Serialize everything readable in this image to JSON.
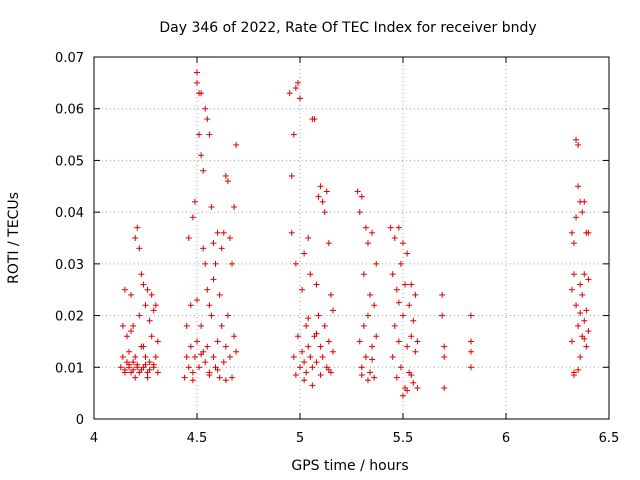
{
  "chart_data": {
    "type": "scatter",
    "title": "Day 346 of 2022, Rate Of TEC Index for receiver bndy",
    "xlabel": "GPS time / hours",
    "ylabel": "ROTI / TECUs",
    "xlim": [
      4,
      6.5
    ],
    "ylim": [
      0,
      0.07
    ],
    "xticks": [
      4,
      4.5,
      5,
      5.5,
      6,
      6.5
    ],
    "xtick_labels": [
      "4",
      "4.5",
      "5",
      "5.5",
      "6",
      "6.5"
    ],
    "yticks": [
      0,
      0.01,
      0.02,
      0.03,
      0.04,
      0.05,
      0.06,
      0.07
    ],
    "ytick_labels": [
      "0",
      "0.01",
      "0.02",
      "0.03",
      "0.04",
      "0.05",
      "0.06",
      "0.07"
    ],
    "grid": true,
    "marker": "+",
    "color": "#e00000",
    "points": [
      [
        4.13,
        0.01
      ],
      [
        4.14,
        0.012
      ],
      [
        4.14,
        0.018
      ],
      [
        4.15,
        0.009
      ],
      [
        4.15,
        0.025
      ],
      [
        4.16,
        0.011
      ],
      [
        4.16,
        0.016
      ],
      [
        4.17,
        0.01
      ],
      [
        4.17,
        0.013
      ],
      [
        4.18,
        0.024
      ],
      [
        4.18,
        0.009
      ],
      [
        4.19,
        0.011
      ],
      [
        4.19,
        0.018
      ],
      [
        4.2,
        0.035
      ],
      [
        4.2,
        0.012
      ],
      [
        4.21,
        0.037
      ],
      [
        4.21,
        0.01
      ],
      [
        4.22,
        0.033
      ],
      [
        4.22,
        0.009
      ],
      [
        4.23,
        0.028
      ],
      [
        4.23,
        0.014
      ],
      [
        4.24,
        0.026
      ],
      [
        4.24,
        0.01
      ],
      [
        4.25,
        0.022
      ],
      [
        4.25,
        0.012
      ],
      [
        4.26,
        0.025
      ],
      [
        4.26,
        0.009
      ],
      [
        4.27,
        0.019
      ],
      [
        4.27,
        0.011
      ],
      [
        4.28,
        0.024
      ],
      [
        4.28,
        0.016
      ],
      [
        4.29,
        0.021
      ],
      [
        4.29,
        0.01
      ],
      [
        4.3,
        0.022
      ],
      [
        4.3,
        0.012
      ],
      [
        4.31,
        0.015
      ],
      [
        4.31,
        0.009
      ],
      [
        4.15,
        0.0095
      ],
      [
        4.17,
        0.0105
      ],
      [
        4.19,
        0.0095
      ],
      [
        4.21,
        0.0105
      ],
      [
        4.23,
        0.0095
      ],
      [
        4.25,
        0.0105
      ],
      [
        4.27,
        0.0095
      ],
      [
        4.29,
        0.0105
      ],
      [
        4.22,
        0.02
      ],
      [
        4.18,
        0.017
      ],
      [
        4.24,
        0.014
      ],
      [
        4.2,
        0.008
      ],
      [
        4.26,
        0.008
      ],
      [
        4.44,
        0.008
      ],
      [
        4.45,
        0.012
      ],
      [
        4.45,
        0.018
      ],
      [
        4.46,
        0.01
      ],
      [
        4.46,
        0.035
      ],
      [
        4.47,
        0.014
      ],
      [
        4.47,
        0.022
      ],
      [
        4.48,
        0.039
      ],
      [
        4.48,
        0.009
      ],
      [
        4.49,
        0.042
      ],
      [
        4.49,
        0.012
      ],
      [
        4.5,
        0.067
      ],
      [
        4.5,
        0.065
      ],
      [
        4.5,
        0.015
      ],
      [
        4.51,
        0.063
      ],
      [
        4.51,
        0.055
      ],
      [
        4.51,
        0.01
      ],
      [
        4.52,
        0.063
      ],
      [
        4.52,
        0.051
      ],
      [
        4.52,
        0.018
      ],
      [
        4.53,
        0.048
      ],
      [
        4.53,
        0.033
      ],
      [
        4.53,
        0.013
      ],
      [
        4.54,
        0.06
      ],
      [
        4.54,
        0.03
      ],
      [
        4.54,
        0.011
      ],
      [
        4.55,
        0.058
      ],
      [
        4.55,
        0.025
      ],
      [
        4.55,
        0.014
      ],
      [
        4.56,
        0.055
      ],
      [
        4.56,
        0.022
      ],
      [
        4.56,
        0.009
      ],
      [
        4.57,
        0.041
      ],
      [
        4.57,
        0.02
      ],
      [
        4.58,
        0.034
      ],
      [
        4.58,
        0.012
      ],
      [
        4.59,
        0.03
      ],
      [
        4.59,
        0.01
      ],
      [
        4.6,
        0.036
      ],
      [
        4.6,
        0.015
      ],
      [
        4.61,
        0.024
      ],
      [
        4.61,
        0.008
      ],
      [
        4.62,
        0.033
      ],
      [
        4.62,
        0.018
      ],
      [
        4.63,
        0.036
      ],
      [
        4.63,
        0.011
      ],
      [
        4.64,
        0.047
      ],
      [
        4.64,
        0.014
      ],
      [
        4.65,
        0.046
      ],
      [
        4.65,
        0.02
      ],
      [
        4.66,
        0.035
      ],
      [
        4.66,
        0.012
      ],
      [
        4.67,
        0.03
      ],
      [
        4.67,
        0.008
      ],
      [
        4.68,
        0.041
      ],
      [
        4.68,
        0.016
      ],
      [
        4.69,
        0.053
      ],
      [
        4.69,
        0.013
      ],
      [
        4.48,
        0.0075
      ],
      [
        4.52,
        0.0125
      ],
      [
        4.56,
        0.0085
      ],
      [
        4.6,
        0.0095
      ],
      [
        4.64,
        0.0075
      ],
      [
        4.5,
        0.023
      ],
      [
        4.58,
        0.027
      ],
      [
        4.95,
        0.063
      ],
      [
        4.96,
        0.047
      ],
      [
        4.96,
        0.036
      ],
      [
        4.97,
        0.055
      ],
      [
        4.97,
        0.012
      ],
      [
        4.98,
        0.064
      ],
      [
        4.98,
        0.03
      ],
      [
        4.99,
        0.065
      ],
      [
        4.99,
        0.016
      ],
      [
        5.0,
        0.062
      ],
      [
        5.0,
        0.01
      ],
      [
        5.01,
        0.025
      ],
      [
        5.01,
        0.013
      ],
      [
        5.02,
        0.032
      ],
      [
        5.02,
        0.011
      ],
      [
        5.03,
        0.018
      ],
      [
        5.03,
        0.009
      ],
      [
        5.04,
        0.035
      ],
      [
        5.04,
        0.014
      ],
      [
        5.05,
        0.028
      ],
      [
        5.05,
        0.012
      ],
      [
        5.06,
        0.058
      ],
      [
        5.06,
        0.01
      ],
      [
        5.07,
        0.058
      ],
      [
        5.07,
        0.016
      ],
      [
        5.08,
        0.026
      ],
      [
        5.08,
        0.011
      ],
      [
        5.09,
        0.043
      ],
      [
        5.09,
        0.02
      ],
      [
        5.1,
        0.045
      ],
      [
        5.1,
        0.014
      ],
      [
        5.11,
        0.042
      ],
      [
        5.11,
        0.012
      ],
      [
        5.12,
        0.04
      ],
      [
        5.12,
        0.018
      ],
      [
        5.13,
        0.044
      ],
      [
        5.13,
        0.01
      ],
      [
        5.14,
        0.034
      ],
      [
        5.14,
        0.015
      ],
      [
        5.15,
        0.024
      ],
      [
        5.15,
        0.009
      ],
      [
        5.16,
        0.021
      ],
      [
        5.16,
        0.013
      ],
      [
        4.98,
        0.0085
      ],
      [
        5.02,
        0.0075
      ],
      [
        5.06,
        0.0065
      ],
      [
        5.1,
        0.0085
      ],
      [
        5.14,
        0.0095
      ],
      [
        5.04,
        0.0195
      ],
      [
        5.08,
        0.0165
      ],
      [
        5.28,
        0.044
      ],
      [
        5.29,
        0.04
      ],
      [
        5.29,
        0.015
      ],
      [
        5.3,
        0.043
      ],
      [
        5.3,
        0.01
      ],
      [
        5.31,
        0.028
      ],
      [
        5.31,
        0.018
      ],
      [
        5.32,
        0.037
      ],
      [
        5.32,
        0.012
      ],
      [
        5.33,
        0.034
      ],
      [
        5.33,
        0.02
      ],
      [
        5.34,
        0.024
      ],
      [
        5.34,
        0.009
      ],
      [
        5.35,
        0.036
      ],
      [
        5.35,
        0.014
      ],
      [
        5.36,
        0.022
      ],
      [
        5.36,
        0.008
      ],
      [
        5.37,
        0.03
      ],
      [
        5.37,
        0.016
      ],
      [
        5.3,
        0.0085
      ],
      [
        5.33,
        0.0075
      ],
      [
        5.35,
        0.0115
      ],
      [
        5.44,
        0.037
      ],
      [
        5.45,
        0.028
      ],
      [
        5.45,
        0.012
      ],
      [
        5.46,
        0.035
      ],
      [
        5.46,
        0.018
      ],
      [
        5.47,
        0.025
      ],
      [
        5.47,
        0.008
      ],
      [
        5.48,
        0.037
      ],
      [
        5.48,
        0.015
      ],
      [
        5.49,
        0.03
      ],
      [
        5.49,
        0.01
      ],
      [
        5.5,
        0.034
      ],
      [
        5.5,
        0.02
      ],
      [
        5.51,
        0.026
      ],
      [
        5.51,
        0.006
      ],
      [
        5.52,
        0.032
      ],
      [
        5.52,
        0.014
      ],
      [
        5.53,
        0.022
      ],
      [
        5.53,
        0.009
      ],
      [
        5.54,
        0.026
      ],
      [
        5.54,
        0.016
      ],
      [
        5.55,
        0.019
      ],
      [
        5.55,
        0.007
      ],
      [
        5.56,
        0.024
      ],
      [
        5.56,
        0.013
      ],
      [
        5.57,
        0.015
      ],
      [
        5.57,
        0.006
      ],
      [
        5.5,
        0.0045
      ],
      [
        5.52,
        0.0055
      ],
      [
        5.54,
        0.0085
      ],
      [
        5.48,
        0.0225
      ],
      [
        5.69,
        0.024
      ],
      [
        5.69,
        0.02
      ],
      [
        5.7,
        0.014
      ],
      [
        5.7,
        0.006
      ],
      [
        5.7,
        0.012
      ],
      [
        5.83,
        0.02
      ],
      [
        5.83,
        0.015
      ],
      [
        5.83,
        0.013
      ],
      [
        5.83,
        0.01
      ],
      [
        6.32,
        0.036
      ],
      [
        6.32,
        0.025
      ],
      [
        6.32,
        0.015
      ],
      [
        6.33,
        0.034
      ],
      [
        6.33,
        0.028
      ],
      [
        6.33,
        0.009
      ],
      [
        6.34,
        0.054
      ],
      [
        6.34,
        0.039
      ],
      [
        6.34,
        0.022
      ],
      [
        6.35,
        0.053
      ],
      [
        6.35,
        0.045
      ],
      [
        6.35,
        0.018
      ],
      [
        6.36,
        0.042
      ],
      [
        6.36,
        0.026
      ],
      [
        6.36,
        0.012
      ],
      [
        6.37,
        0.04
      ],
      [
        6.37,
        0.024
      ],
      [
        6.37,
        0.016
      ],
      [
        6.38,
        0.042
      ],
      [
        6.38,
        0.028
      ],
      [
        6.38,
        0.019
      ],
      [
        6.39,
        0.036
      ],
      [
        6.39,
        0.021
      ],
      [
        6.39,
        0.014
      ],
      [
        6.4,
        0.036
      ],
      [
        6.4,
        0.027
      ],
      [
        6.4,
        0.017
      ],
      [
        6.33,
        0.0085
      ],
      [
        6.35,
        0.0095
      ],
      [
        6.36,
        0.0205
      ],
      [
        6.38,
        0.0155
      ]
    ]
  }
}
